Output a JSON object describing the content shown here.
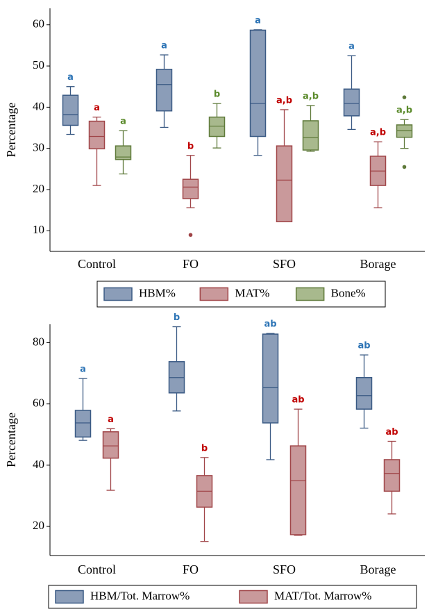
{
  "chart_data": [
    {
      "type": "box",
      "ylabel": "Percentage",
      "categories": [
        "Control",
        "FO",
        "SFO",
        "Borage"
      ],
      "ylim": [
        5,
        64
      ],
      "yticks": [
        10,
        20,
        30,
        40,
        50,
        60
      ],
      "legend": "bottom",
      "series": [
        {
          "name": "HBM%",
          "color": "#8b9db8",
          "edge": "#3a5a84",
          "letter_color": "#2e75b6",
          "min": [
            33.4,
            35.1,
            28.3,
            34.6
          ],
          "q1": [
            35.6,
            39.1,
            32.9,
            37.9
          ],
          "median": [
            38.2,
            45.5,
            40.9,
            40.9
          ],
          "q3": [
            42.9,
            49.2,
            58.7,
            44.4
          ],
          "max": [
            45.0,
            52.7,
            58.8,
            52.5
          ],
          "letters": [
            "a",
            "a",
            "a",
            "a"
          ]
        },
        {
          "name": "MAT%",
          "color": "#c9999b",
          "edge": "#a04548",
          "letter_color": "#c00000",
          "min": [
            21.0,
            15.6,
            12.2,
            15.6
          ],
          "q1": [
            29.9,
            17.8,
            12.2,
            21.0
          ],
          "median": [
            32.9,
            20.6,
            22.3,
            24.5
          ],
          "q3": [
            36.6,
            22.5,
            30.6,
            28.1
          ],
          "max": [
            37.6,
            28.3,
            39.4,
            31.6
          ],
          "outliers": [
            [],
            [
              9.0
            ],
            [],
            []
          ],
          "letters": [
            "a",
            "b",
            "a,b",
            "a,b"
          ]
        },
        {
          "name": "Bone%",
          "color": "#a8b98d",
          "edge": "#5f7a3a",
          "letter_color": "#5a8a2a",
          "min": [
            23.8,
            30.1,
            29.3,
            30.0
          ],
          "q1": [
            27.3,
            32.9,
            29.6,
            32.7
          ],
          "median": [
            27.9,
            35.4,
            32.6,
            34.3
          ],
          "q3": [
            30.6,
            37.6,
            36.7,
            35.7
          ],
          "max": [
            34.3,
            40.9,
            40.4,
            37.0
          ],
          "outliers": [
            [],
            [],
            [],
            [
              42.4,
              25.5
            ]
          ],
          "letters": [
            "a",
            "b",
            "a,b",
            "a,b"
          ]
        }
      ]
    },
    {
      "type": "box",
      "ylabel": "Percentage",
      "categories": [
        "Control",
        "FO",
        "SFO",
        "Borage"
      ],
      "ylim": [
        10.5,
        86
      ],
      "yticks": [
        20,
        40,
        60,
        80
      ],
      "legend": "bottom",
      "series": [
        {
          "name": "HBM/Tot. Marrow%",
          "color": "#8b9db8",
          "edge": "#3a5a84",
          "letter_color": "#2e75b6",
          "min": [
            48.1,
            57.7,
            41.8,
            52.1
          ],
          "q1": [
            49.2,
            63.6,
            53.8,
            58.3
          ],
          "median": [
            53.8,
            68.6,
            65.3,
            62.7
          ],
          "q3": [
            57.9,
            73.8,
            82.8,
            68.6
          ],
          "max": [
            68.3,
            85.2,
            83.0,
            76.0
          ],
          "letters": [
            "a",
            "b",
            "ab",
            "ab"
          ]
        },
        {
          "name": "MAT/Tot. Marrow%",
          "color": "#c9999b",
          "edge": "#a04548",
          "letter_color": "#c00000",
          "min": [
            31.8,
            15.1,
            17.1,
            24.1
          ],
          "q1": [
            42.3,
            26.3,
            17.3,
            31.5
          ],
          "median": [
            46.3,
            31.5,
            34.9,
            37.3
          ],
          "q3": [
            50.9,
            36.6,
            46.3,
            41.8
          ],
          "max": [
            51.9,
            42.5,
            58.3,
            47.8
          ],
          "letters": [
            "a",
            "b",
            "ab",
            "ab"
          ]
        }
      ]
    }
  ]
}
